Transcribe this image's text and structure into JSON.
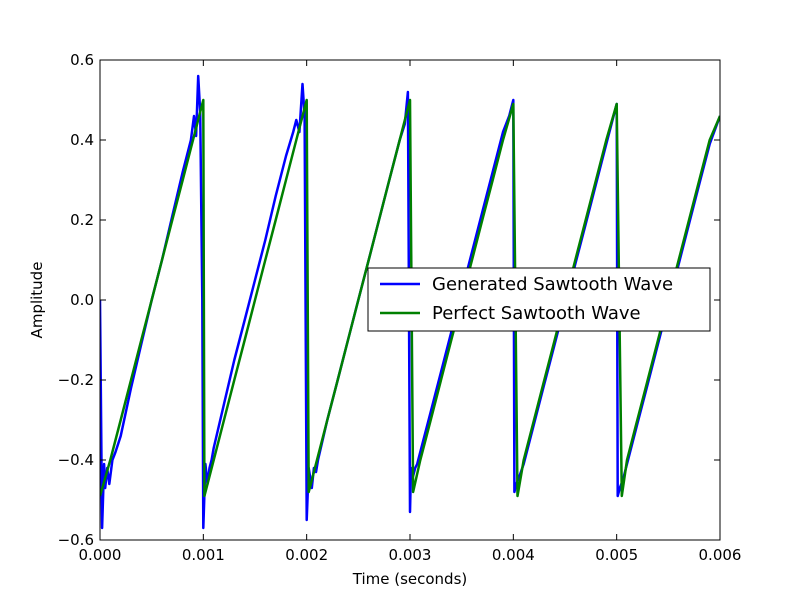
{
  "chart_data": {
    "type": "line",
    "title": "",
    "xlabel": "Time (seconds)",
    "ylabel": "Amplitude",
    "xlim": [
      0,
      0.006
    ],
    "ylim": [
      -0.6,
      0.6
    ],
    "grid": false,
    "legend_position": "center-right",
    "x_ticks": [
      {
        "value": 0.0,
        "label": "0.000"
      },
      {
        "value": 0.001,
        "label": "0.001"
      },
      {
        "value": 0.002,
        "label": "0.002"
      },
      {
        "value": 0.003,
        "label": "0.003"
      },
      {
        "value": 0.004,
        "label": "0.004"
      },
      {
        "value": 0.005,
        "label": "0.005"
      },
      {
        "value": 0.006,
        "label": "0.006"
      }
    ],
    "y_ticks": [
      {
        "value": 0.6,
        "label": "0.6"
      },
      {
        "value": 0.4,
        "label": "0.4"
      },
      {
        "value": 0.2,
        "label": "0.2"
      },
      {
        "value": 0.0,
        "label": "0.0"
      },
      {
        "value": -0.2,
        "label": "−0.2"
      },
      {
        "value": -0.4,
        "label": "−0.4"
      },
      {
        "value": -0.6,
        "label": "−0.6"
      }
    ],
    "series": [
      {
        "name": "Generated Sawtooth Wave",
        "color": "#0000ff",
        "x": [
          0.0,
          2e-05,
          4e-05,
          5e-05,
          7e-05,
          9e-05,
          0.00012,
          0.00015,
          0.0002,
          0.0003,
          0.0004,
          0.0005,
          0.0006,
          0.0007,
          0.0008,
          0.00088,
          0.00091,
          0.00093,
          0.00095,
          0.00097,
          0.00099,
          0.001,
          0.00102,
          0.00104,
          0.00106,
          0.00108,
          0.0011,
          0.0012,
          0.0013,
          0.0014,
          0.0015,
          0.0016,
          0.0017,
          0.0018,
          0.00187,
          0.0019,
          0.00193,
          0.00196,
          0.00198,
          0.002,
          0.00202,
          0.00205,
          0.00207,
          0.00209,
          0.00211,
          0.0022,
          0.0023,
          0.0024,
          0.0025,
          0.0026,
          0.0027,
          0.0028,
          0.0029,
          0.00295,
          0.00298,
          0.003,
          0.00301,
          0.00303,
          0.00305,
          0.00307,
          0.0031,
          0.0032,
          0.0033,
          0.0034,
          0.0035,
          0.0036,
          0.0037,
          0.0038,
          0.0039,
          0.00396,
          0.004,
          0.00401,
          0.00403,
          0.00406,
          0.0041,
          0.0042,
          0.0043,
          0.0044,
          0.0045,
          0.0046,
          0.0047,
          0.0048,
          0.0049,
          0.005,
          0.00501,
          0.00503,
          0.00506,
          0.0051,
          0.0052,
          0.0053,
          0.0054,
          0.0055,
          0.0056,
          0.0057,
          0.0058,
          0.0059,
          0.006
        ],
        "y": [
          0.0,
          -0.57,
          -0.41,
          -0.47,
          -0.42,
          -0.46,
          -0.4,
          -0.38,
          -0.34,
          -0.22,
          -0.11,
          0.0,
          0.1,
          0.21,
          0.32,
          0.4,
          0.46,
          0.41,
          0.56,
          0.47,
          0.0,
          -0.57,
          -0.41,
          -0.46,
          -0.42,
          -0.4,
          -0.37,
          -0.26,
          -0.15,
          -0.05,
          0.05,
          0.15,
          0.26,
          0.36,
          0.42,
          0.45,
          0.42,
          0.54,
          0.46,
          -0.55,
          -0.42,
          -0.47,
          -0.42,
          -0.43,
          -0.4,
          -0.3,
          -0.2,
          -0.1,
          0.0,
          0.1,
          0.2,
          0.3,
          0.4,
          0.44,
          0.52,
          -0.53,
          -0.42,
          -0.44,
          -0.42,
          -0.41,
          -0.38,
          -0.28,
          -0.18,
          -0.08,
          0.02,
          0.12,
          0.22,
          0.32,
          0.42,
          0.46,
          0.5,
          -0.48,
          -0.46,
          -0.44,
          -0.41,
          -0.31,
          -0.21,
          -0.11,
          -0.01,
          0.09,
          0.19,
          0.29,
          0.39,
          0.49,
          -0.49,
          -0.47,
          -0.45,
          -0.41,
          -0.31,
          -0.21,
          -0.11,
          -0.01,
          0.09,
          0.19,
          0.29,
          0.39,
          0.46
        ]
      },
      {
        "name": "Perfect Sawtooth Wave",
        "color": "#008000",
        "x": [
          0.0,
          0.0001,
          0.0002,
          0.0003,
          0.0004,
          0.0005,
          0.0006,
          0.0007,
          0.0008,
          0.0009,
          0.001,
          0.00101,
          0.0011,
          0.0012,
          0.0013,
          0.0014,
          0.0015,
          0.0016,
          0.0017,
          0.0018,
          0.0019,
          0.002,
          0.00202,
          0.0021,
          0.0022,
          0.0023,
          0.0024,
          0.0025,
          0.0026,
          0.0027,
          0.0028,
          0.0029,
          0.003,
          0.00303,
          0.0031,
          0.0032,
          0.0033,
          0.0034,
          0.0035,
          0.0036,
          0.0037,
          0.0038,
          0.0039,
          0.004,
          0.00404,
          0.0041,
          0.0042,
          0.0043,
          0.0044,
          0.0045,
          0.0046,
          0.0047,
          0.0048,
          0.0049,
          0.005,
          0.00505,
          0.0051,
          0.0052,
          0.0053,
          0.0054,
          0.0055,
          0.0056,
          0.0057,
          0.0058,
          0.0059,
          0.006
        ],
        "y": [
          -0.49,
          -0.4,
          -0.3,
          -0.2,
          -0.1,
          0.0,
          0.1,
          0.2,
          0.3,
          0.4,
          0.5,
          -0.49,
          -0.4,
          -0.3,
          -0.2,
          -0.1,
          0.0,
          0.1,
          0.2,
          0.3,
          0.4,
          0.5,
          -0.48,
          -0.4,
          -0.3,
          -0.2,
          -0.1,
          0.0,
          0.1,
          0.2,
          0.3,
          0.4,
          0.5,
          -0.48,
          -0.4,
          -0.3,
          -0.2,
          -0.1,
          0.0,
          0.1,
          0.2,
          0.3,
          0.4,
          0.49,
          -0.49,
          -0.4,
          -0.3,
          -0.2,
          -0.1,
          0.0,
          0.1,
          0.2,
          0.3,
          0.4,
          0.49,
          -0.49,
          -0.4,
          -0.3,
          -0.2,
          -0.1,
          0.0,
          0.1,
          0.2,
          0.3,
          0.4,
          0.46
        ]
      }
    ]
  }
}
